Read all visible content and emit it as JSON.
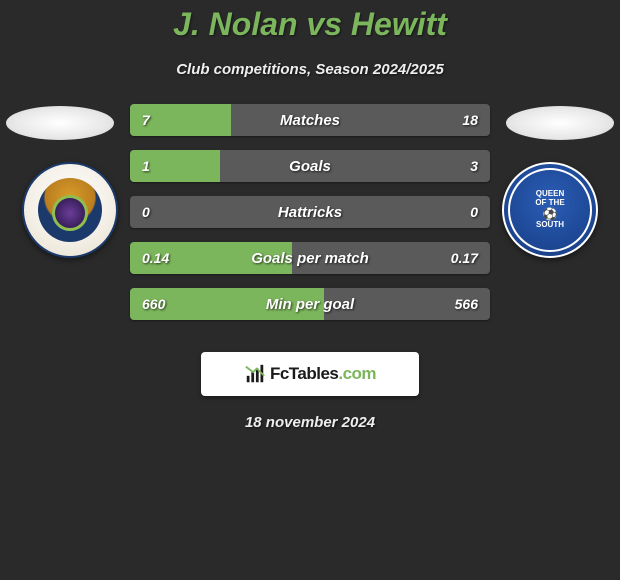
{
  "title": "J. Nolan vs Hewitt",
  "subtitle": "Club competitions, Season 2024/2025",
  "date": "18 november 2024",
  "logo": {
    "text_a": "Fc",
    "text_b": "Tables",
    "text_c": ".com"
  },
  "colors": {
    "background": "#2a2a2a",
    "accent_green": "#7cb65c",
    "bar_left": "#7cb65c",
    "bar_right": "#5a5a5a",
    "bar_neutral": "#5a5a5a",
    "text": "#ffffff"
  },
  "badges": {
    "left": {
      "name": "inverness-ct-badge"
    },
    "right": {
      "name": "queen-of-the-south-badge",
      "line1": "QUEEN",
      "line2": "OF THE",
      "line3": "SOUTH"
    }
  },
  "stats": [
    {
      "label": "Matches",
      "left_val": "7",
      "right_val": "18",
      "left_pct": 28,
      "right_pct": 72,
      "left_color": "#7cb65c",
      "right_color": "#5a5a5a"
    },
    {
      "label": "Goals",
      "left_val": "1",
      "right_val": "3",
      "left_pct": 25,
      "right_pct": 75,
      "left_color": "#7cb65c",
      "right_color": "#5a5a5a"
    },
    {
      "label": "Hattricks",
      "left_val": "0",
      "right_val": "0",
      "left_pct": 100,
      "right_pct": 0,
      "left_color": "#5a5a5a",
      "right_color": "#5a5a5a"
    },
    {
      "label": "Goals per match",
      "left_val": "0.14",
      "right_val": "0.17",
      "left_pct": 45,
      "right_pct": 55,
      "left_color": "#7cb65c",
      "right_color": "#5a5a5a"
    },
    {
      "label": "Min per goal",
      "left_val": "660",
      "right_val": "566",
      "left_pct": 54,
      "right_pct": 46,
      "left_color": "#7cb65c",
      "right_color": "#5a5a5a"
    }
  ]
}
